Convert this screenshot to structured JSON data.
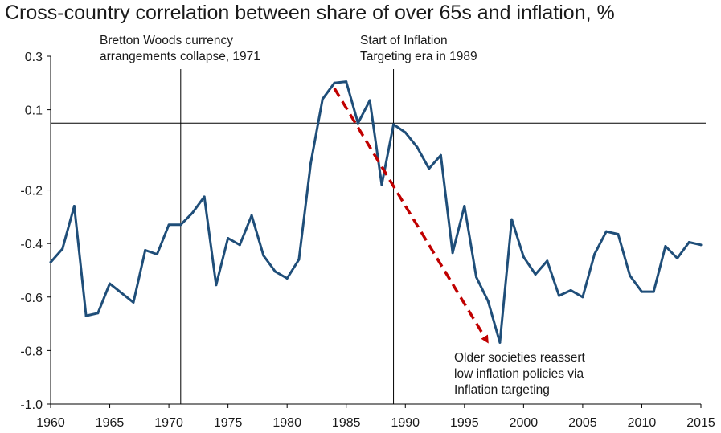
{
  "chart_data": {
    "type": "line",
    "title": "Cross-country correlation between share of over 65s and inflation, %",
    "xlabel": "",
    "ylabel": "",
    "xlim": [
      1960,
      2015
    ],
    "ylim": [
      -1.0,
      0.3
    ],
    "x_ticks": [
      "1960",
      "1965",
      "1970",
      "1975",
      "1980",
      "1985",
      "1990",
      "1995",
      "2000",
      "2005",
      "2010",
      "2015"
    ],
    "y_ticks": [
      "0.3",
      "0.1",
      "-0.2",
      "-0.4",
      "-0.6",
      "-0.8",
      "-1.0"
    ],
    "series": [
      {
        "color": "#1f4e79",
        "x": [
          1960,
          1961,
          1962,
          1963,
          1964,
          1965,
          1966,
          1967,
          1968,
          1969,
          1970,
          1971,
          1972,
          1973,
          1974,
          1975,
          1976,
          1977,
          1978,
          1979,
          1980,
          1981,
          1982,
          1983,
          1984,
          1985,
          1986,
          1987,
          1988,
          1989,
          1990,
          1991,
          1992,
          1993,
          1994,
          1995,
          1996,
          1997,
          1998,
          1999,
          2000,
          2001,
          2002,
          2003,
          2004,
          2005,
          2006,
          2007,
          2008,
          2009,
          2010,
          2011,
          2012,
          2013,
          2014,
          2015
        ],
        "y": [
          -0.47,
          -0.42,
          -0.26,
          -0.67,
          -0.66,
          -0.55,
          -0.585,
          -0.62,
          -0.425,
          -0.44,
          -0.33,
          -0.33,
          -0.285,
          -0.225,
          -0.555,
          -0.38,
          -0.405,
          -0.295,
          -0.445,
          -0.505,
          -0.53,
          -0.46,
          -0.1,
          0.14,
          0.2,
          0.205,
          0.05,
          0.135,
          -0.18,
          0.045,
          0.015,
          -0.04,
          -0.12,
          -0.07,
          -0.435,
          -0.26,
          -0.525,
          -0.615,
          -0.77,
          -0.31,
          -0.45,
          -0.515,
          -0.465,
          -0.595,
          -0.575,
          -0.6,
          -0.44,
          -0.355,
          -0.365,
          -0.52,
          -0.58,
          -0.58,
          -0.41,
          -0.455,
          -0.395,
          -0.405
        ]
      }
    ],
    "reference_lines": [
      {
        "orientation": "horizontal",
        "y": 0.05
      },
      {
        "orientation": "vertical",
        "x": 1971
      },
      {
        "orientation": "vertical",
        "x": 1989
      }
    ],
    "annotations": [
      {
        "x": 1971,
        "lines": [
          "Bretton Woods currency",
          "arrangements collapse, 1971"
        ]
      },
      {
        "x": 1989,
        "lines": [
          "Start of Inflation",
          "Targeting era in 1989"
        ]
      },
      {
        "x": 1997,
        "lines": [
          "Older societies reassert",
          "low inflation policies via",
          "Inflation targeting"
        ]
      }
    ],
    "arrow": {
      "from": [
        1984,
        0.18
      ],
      "to": [
        1997,
        -0.77
      ],
      "color": "#c00000",
      "style": "dashed"
    },
    "grid": false,
    "legend": "none"
  }
}
